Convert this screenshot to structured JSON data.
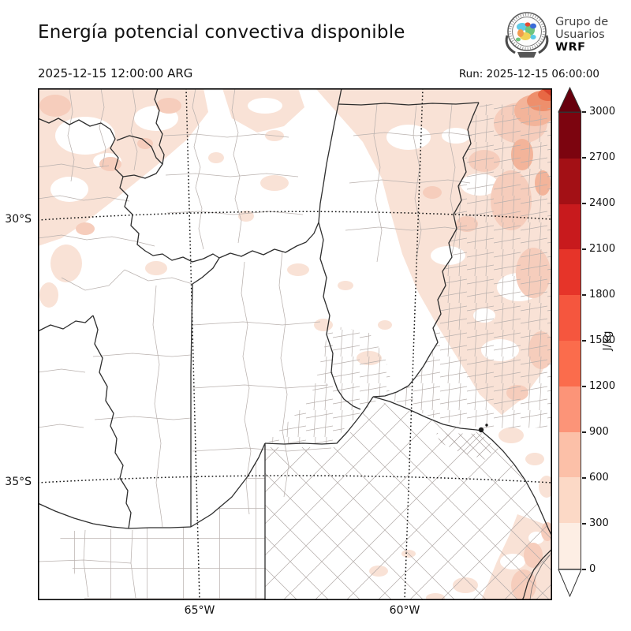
{
  "header": {
    "title": "Energía potencial convectiva disponible",
    "valid_time": "2025-12-15 12:00:00 ARG",
    "run_label": "Run: 2025-12-15 06:00:00",
    "logo": {
      "line1": "Grupo de",
      "line2": "Usuarios",
      "line3": "WRF"
    }
  },
  "map": {
    "lat_labels": [
      "30°S",
      "35°S"
    ],
    "lon_labels": [
      "65°W",
      "60°W"
    ]
  },
  "colorbar": {
    "unit": "J/kg",
    "ticks": [
      0,
      300,
      600,
      900,
      1200,
      1500,
      1800,
      2100,
      2400,
      2700,
      3000
    ],
    "bin_colors_low_to_high": [
      "#fdeee4",
      "#fcd9c6",
      "#fcc0a8",
      "#fc9478",
      "#fb6c4c",
      "#f5563e",
      "#e63429",
      "#c81a1d",
      "#a31015",
      "#7c040f"
    ],
    "over_arrow_color": "#67000d",
    "under_arrow_color": "#ffffff"
  },
  "chart_data": {
    "type": "heatmap",
    "title": "Energía potencial convectiva disponible",
    "variable": "CAPE (convective available potential energy)",
    "units": "J/kg",
    "valid_time": "2025-12-15 12:00:00 ARG",
    "model_run": "2025-12-15 06:00:00",
    "source": "Grupo de Usuarios WRF",
    "levels": [
      0,
      300,
      600,
      900,
      1200,
      1500,
      1800,
      2100,
      2400,
      2700,
      3000
    ],
    "palette": "Reds (white=0, dark red=3000, arrow extensions over/under)",
    "x_axis": {
      "label_type": "longitude",
      "ticks": [
        "65°W",
        "60°W"
      ]
    },
    "y_axis": {
      "label_type": "latitude",
      "ticks": [
        "30°S",
        "35°S"
      ]
    },
    "legend_position": "right vertical colorbar",
    "grid": "dotted graticule lines at 30°S, 35°S, 65°W, 60°W",
    "regions": [
      {
        "area": "far northeast corner of domain",
        "approx_value_jkg": "600-1500 (local maximum)"
      },
      {
        "area": "north and northeast (Chaco / Santa Fe / Corrientes side)",
        "approx_value_jkg": "100-600 patchy"
      },
      {
        "area": "northwest (Salta-Tucumán-Catamarca foothills)",
        "approx_value_jkg": "0-400 patchy"
      },
      {
        "area": "center and southwest (Cuyo, La Pampa)",
        "approx_value_jkg": "~0 (white)"
      },
      {
        "area": "southeast Atlantic coast of Buenos Aires",
        "approx_value_jkg": "0-600 patchy"
      }
    ]
  }
}
